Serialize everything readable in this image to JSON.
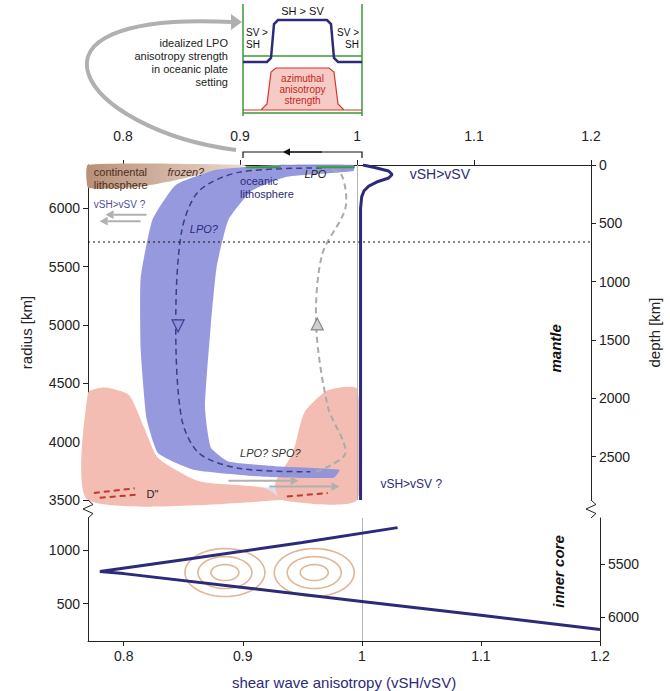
{
  "chart_data": [
    {
      "type": "line",
      "xlim": [
        0.77,
        1.2
      ],
      "xticks": [
        0.8,
        0.9,
        1,
        1.1,
        1.2
      ],
      "ylabel": "radius [km]",
      "ylim": [
        3500,
        6371
      ],
      "yticks": [
        3500,
        4000,
        4500,
        5000,
        5500,
        6000
      ],
      "y2label": "depth [km]",
      "y2lim": [
        0,
        2871
      ],
      "y2ticks": [
        0,
        500,
        1000,
        1500,
        2000,
        2500
      ],
      "grid": false,
      "reference_x": 1,
      "reference_y2": 660,
      "series": [
        {
          "color": "#2c2a79",
          "x": [
            1.005,
            1.015,
            1.027,
            1.03,
            1.027,
            1.018,
            1.01,
            1.006,
            1.004,
            1.003,
            1.003,
            1.003,
            1.003,
            1.003,
            1.003
          ],
          "values": [
            6371,
            6350,
            6320,
            6290,
            6260,
            6230,
            6190,
            6150,
            6100,
            6000,
            5500,
            5000,
            4500,
            4000,
            3500
          ]
        }
      ],
      "annotations": [
        "continental lithosphere",
        "frozen?",
        "oceanic lithosphere",
        "LPO",
        "vSH>vSV",
        "vSH>vSV ?",
        "LPO?",
        "LPO? SPO?",
        "D\"",
        "vSH>vSV ?",
        "mantle"
      ]
    },
    {
      "type": "line",
      "xlabel": "shear wave anisotropy (vSH/vSV)",
      "xlim": [
        0.77,
        1.2
      ],
      "xticks": [
        0.8,
        0.9,
        1,
        1.1,
        1.2
      ],
      "ylim": [
        150,
        1300
      ],
      "yticks": [
        500,
        1000
      ],
      "y2lim": [
        5071,
        6221
      ],
      "y2ticks": [
        5500,
        6000
      ],
      "grid": false,
      "reference_x": 1,
      "series": [
        {
          "color": "#2c2a79",
          "x": [
            1.03,
            0.95,
            0.85,
            0.78,
            0.8,
            0.9,
            1.0,
            1.1,
            1.2
          ],
          "values": [
            1210,
            1070,
            910,
            800,
            780,
            650,
            520,
            390,
            258
          ]
        }
      ],
      "annotations": [
        "inner core"
      ]
    }
  ],
  "inset": {
    "title": "idealized LPO anisotropy strength in oceanic plate setting",
    "upper_labels": [
      "SH > SV",
      "SV > SH",
      "SV > SH"
    ],
    "lower_label": "azimuthal anisotropy strength"
  }
}
